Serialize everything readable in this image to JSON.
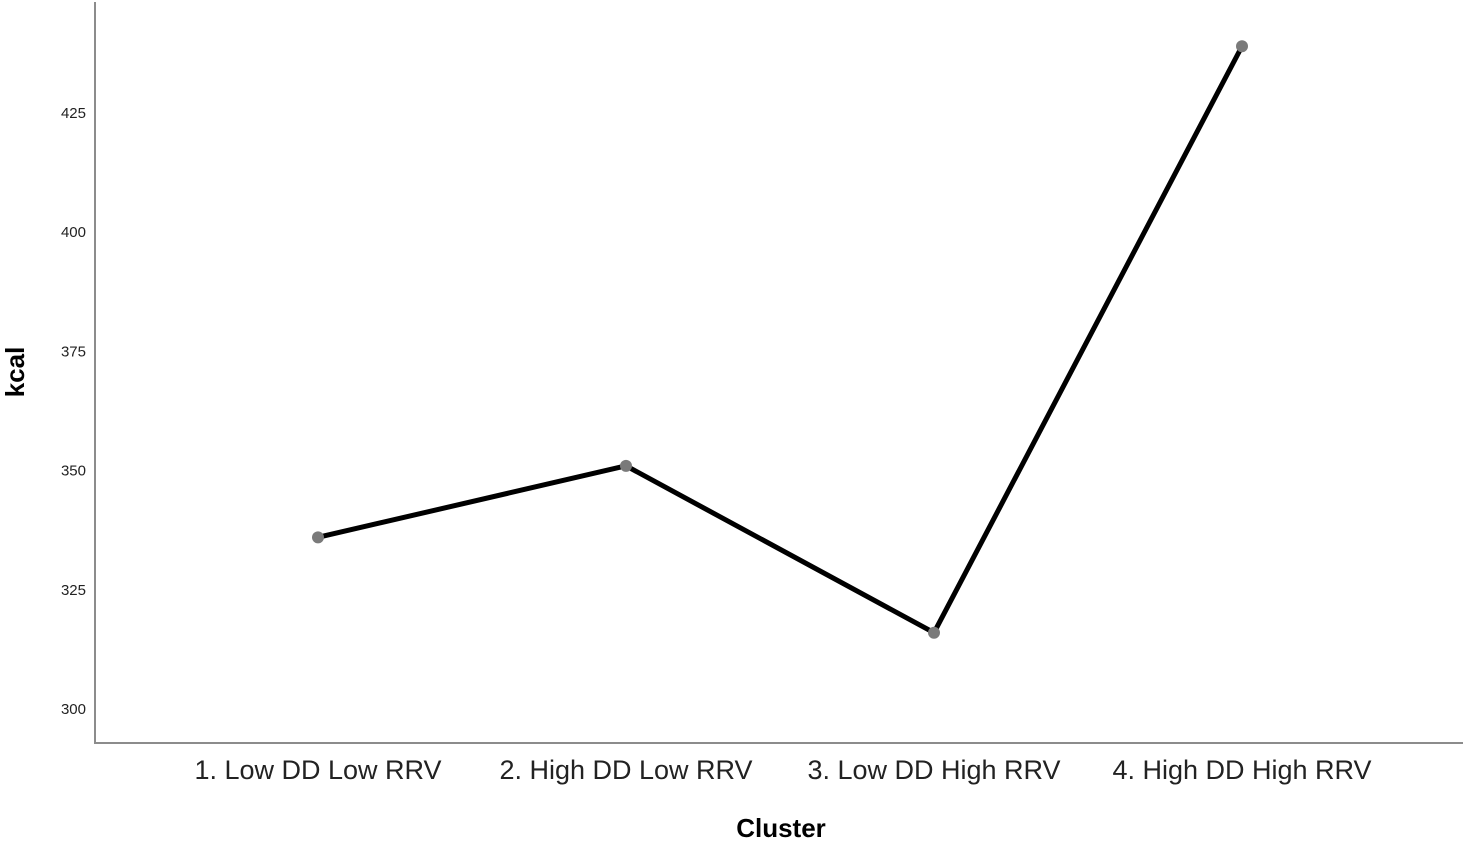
{
  "chart_data": {
    "type": "line",
    "xlabel": "Cluster",
    "ylabel": "kcal",
    "categories": [
      "1. Low DD Low RRV",
      "2. High DD Low RRV",
      "3. Low DD High RRV",
      "4. High DD High RRV"
    ],
    "series": [
      {
        "values": [
          336,
          351,
          316,
          439
        ]
      }
    ],
    "yticks": [
      "300",
      "325",
      "350",
      "375",
      "400",
      "425"
    ],
    "ylim": [
      293,
      447
    ],
    "grid": false,
    "legend": "none",
    "colors": {
      "line": "#000000",
      "marker": "#7a7a7a",
      "axis": "#8c8c8c"
    }
  }
}
